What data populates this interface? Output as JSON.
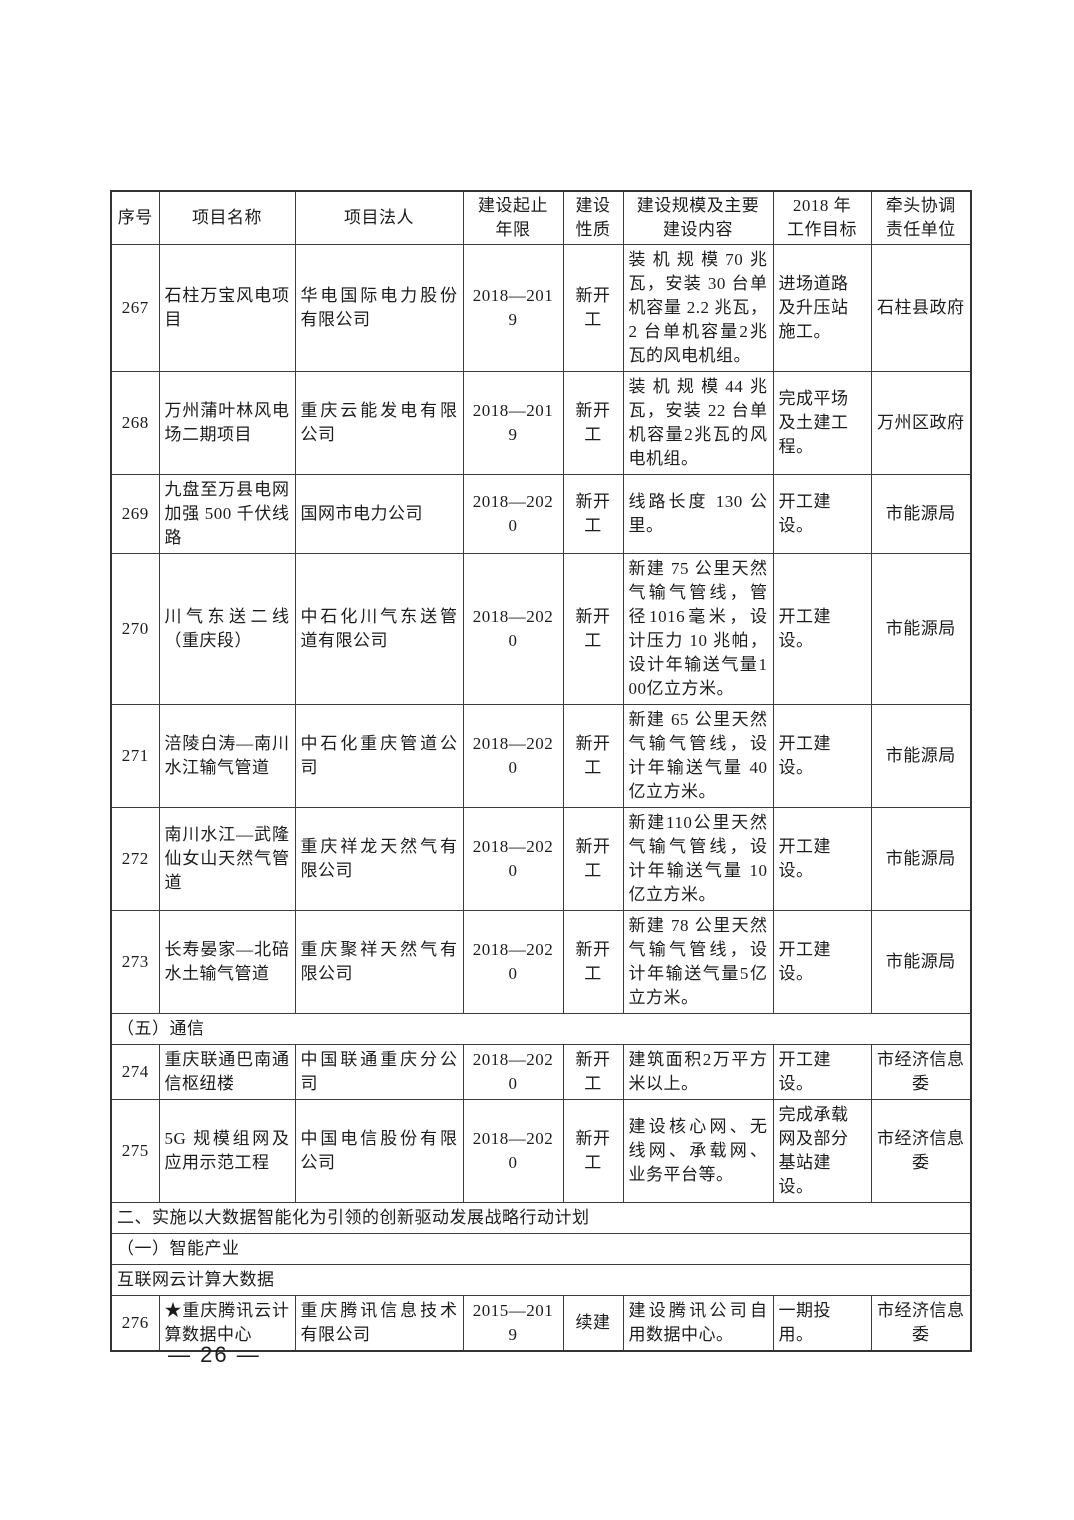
{
  "page": {
    "footer": "— 26 —"
  },
  "table": {
    "headers": [
      "序号",
      "项目名称",
      "项目法人",
      "建设起止\n年限",
      "建设\n性质",
      "建设规模及主要\n建设内容",
      "2018 年\n工作目标",
      "牵头协调\n责任单位"
    ],
    "column_keys": [
      "no",
      "name",
      "legal",
      "years",
      "nature",
      "scale",
      "target",
      "unit"
    ],
    "rows": [
      {
        "type": "project",
        "no": "267",
        "name": "石柱万宝风电项目",
        "legal": "华电国际电力股份有限公司",
        "years": "2018—2019",
        "nature": "新开工",
        "scale": "装机规模70兆瓦，安装 30 台单机容量 2.2 兆瓦，2 台单机容量2兆瓦的风电机组。",
        "target": "进场道路及升压站施工。",
        "unit": "石柱县政府"
      },
      {
        "type": "project",
        "no": "268",
        "name": "万州蒲叶林风电场二期项目",
        "legal": "重庆云能发电有限公司",
        "years": "2018—2019",
        "nature": "新开工",
        "scale": "装机规模44兆瓦，安装 22 台单机容量2兆瓦的风电机组。",
        "target": "完成平场及土建工程。",
        "unit": "万州区政府"
      },
      {
        "type": "project",
        "no": "269",
        "name": "九盘至万县电网加强 500 千伏线路",
        "legal": "国网市电力公司",
        "years": "2018—2020",
        "nature": "新开工",
        "scale": "线路长度 130 公里。",
        "target": "开工建设。",
        "unit": "市能源局"
      },
      {
        "type": "project",
        "no": "270",
        "name": "川气东送二线（重庆段）",
        "legal": "中石化川气东送管道有限公司",
        "years": "2018—2020",
        "nature": "新开工",
        "scale": "新建 75 公里天然气输气管线，管径1016毫米，设计压力 10 兆帕，设计年输送气量100亿立方米。",
        "target": "开工建设。",
        "unit": "市能源局"
      },
      {
        "type": "project",
        "no": "271",
        "name": "涪陵白涛—南川水江输气管道",
        "legal": "中石化重庆管道公司",
        "years": "2018—2020",
        "nature": "新开工",
        "scale": "新建 65 公里天然气输气管线，设计年输送气量 40 亿立方米。",
        "target": "开工建设。",
        "unit": "市能源局"
      },
      {
        "type": "project",
        "no": "272",
        "name": "南川水江—武隆仙女山天然气管道",
        "legal": "重庆祥龙天然气有限公司",
        "years": "2018—2020",
        "nature": "新开工",
        "scale": "新建110公里天然气输气管线，设计年输送气量 10 亿立方米。",
        "target": "开工建设。",
        "unit": "市能源局"
      },
      {
        "type": "project",
        "no": "273",
        "name": "长寿晏家—北碚水土输气管道",
        "legal": "重庆聚祥天然气有限公司",
        "years": "2018—2020",
        "nature": "新开工",
        "scale": "新建 78 公里天然气输气管线，设计年输送气量5亿立方米。",
        "target": "开工建设。",
        "unit": "市能源局"
      },
      {
        "type": "section",
        "label": "（五）通信"
      },
      {
        "type": "project",
        "no": "274",
        "name": "重庆联通巴南通信枢纽楼",
        "legal": "中国联通重庆分公司",
        "years": "2018—2020",
        "nature": "新开工",
        "scale": "建筑面积2万平方米以上。",
        "target": "开工建设。",
        "unit": "市经济信息委"
      },
      {
        "type": "project",
        "no": "275",
        "name": "5G 规模组网及应用示范工程",
        "legal": "中国电信股份有限公司",
        "years": "2018—2020",
        "nature": "新开工",
        "scale": "建设核心网、无线网、承载网、业务平台等。",
        "target": "完成承载网及部分基站建设。",
        "unit": "市经济信息委"
      },
      {
        "type": "section",
        "label": "二、实施以大数据智能化为引领的创新驱动发展战略行动计划"
      },
      {
        "type": "section",
        "label": "（一）智能产业"
      },
      {
        "type": "section",
        "label": "互联网云计算大数据"
      },
      {
        "type": "project",
        "no": "276",
        "name": "★重庆腾讯云计算数据中心",
        "legal": "重庆腾讯信息技术有限公司",
        "years": "2015—2019",
        "nature": "续建",
        "scale": "建设腾讯公司自用数据中心。",
        "target": "一期投用。",
        "unit": "市经济信息委"
      }
    ]
  }
}
